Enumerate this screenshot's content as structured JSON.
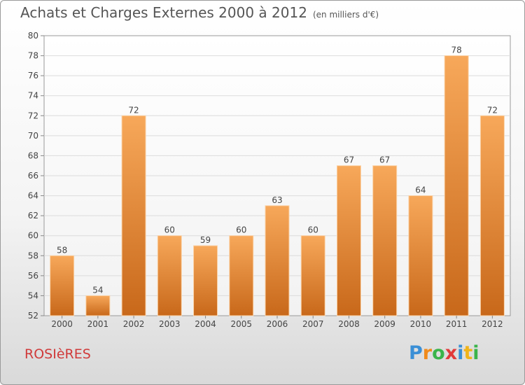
{
  "header": {
    "title": "Achats et Charges Externes 2000 à 2012",
    "subtitle": "(en milliers d'€)"
  },
  "footer": {
    "town": "ROSIèRES",
    "logo_letters": [
      {
        "ch": "P",
        "color": "#3a8fd6"
      },
      {
        "ch": "r",
        "color": "#f08a1a"
      },
      {
        "ch": "o",
        "color": "#3ab44a"
      },
      {
        "ch": "x",
        "color": "#e23a3a"
      },
      {
        "ch": "i",
        "color": "#3a8fd6"
      },
      {
        "ch": "t",
        "color": "#f0b41a"
      },
      {
        "ch": "i",
        "color": "#3ab44a"
      }
    ]
  },
  "chart_data": {
    "type": "bar",
    "categories": [
      "2000",
      "2001",
      "2002",
      "2003",
      "2004",
      "2005",
      "2006",
      "2007",
      "2008",
      "2009",
      "2010",
      "2011",
      "2012"
    ],
    "values": [
      58,
      54,
      72,
      60,
      59,
      60,
      63,
      60,
      67,
      67,
      64,
      78,
      72
    ],
    "title": "Achats et Charges Externes 2000 à 2012",
    "xlabel": "",
    "ylabel": "",
    "ylim": [
      52,
      80
    ],
    "yticks": [
      52,
      54,
      56,
      58,
      60,
      62,
      64,
      66,
      68,
      70,
      72,
      74,
      76,
      78,
      80
    ],
    "grid": true,
    "bar_color_top": "#f7a85a",
    "bar_color_bottom": "#c8681a"
  }
}
